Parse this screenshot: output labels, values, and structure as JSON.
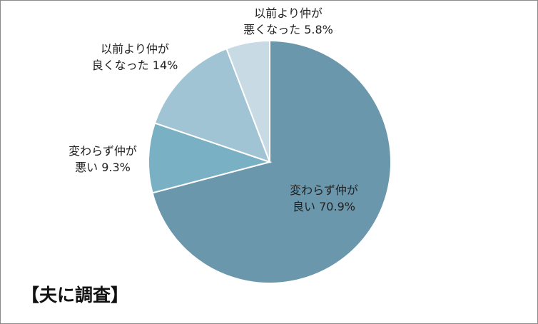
{
  "title": "【夫に調査】",
  "chart_data": {
    "type": "pie",
    "title": "【夫に調査】",
    "start": "12 o'clock",
    "direction": "clockwise",
    "slices": [
      {
        "label_line1": "変わらず仲が",
        "label_line2": "良い",
        "value": 70.9,
        "value_text": "70.9%",
        "color": "#6a97ab"
      },
      {
        "label_line1": "変わらず仲が",
        "label_line2": "悪い",
        "value": 9.3,
        "value_text": "9.3%",
        "color": "#7ab0c4"
      },
      {
        "label_line1": "以前より仲が",
        "label_line2": "良くなった",
        "value": 14,
        "value_text": "14%",
        "color": "#a1c4d4"
      },
      {
        "label_line1": "以前より仲が",
        "label_line2": "悪くなった",
        "value": 5.8,
        "value_text": "5.8%",
        "color": "#c8dbe5"
      }
    ]
  }
}
